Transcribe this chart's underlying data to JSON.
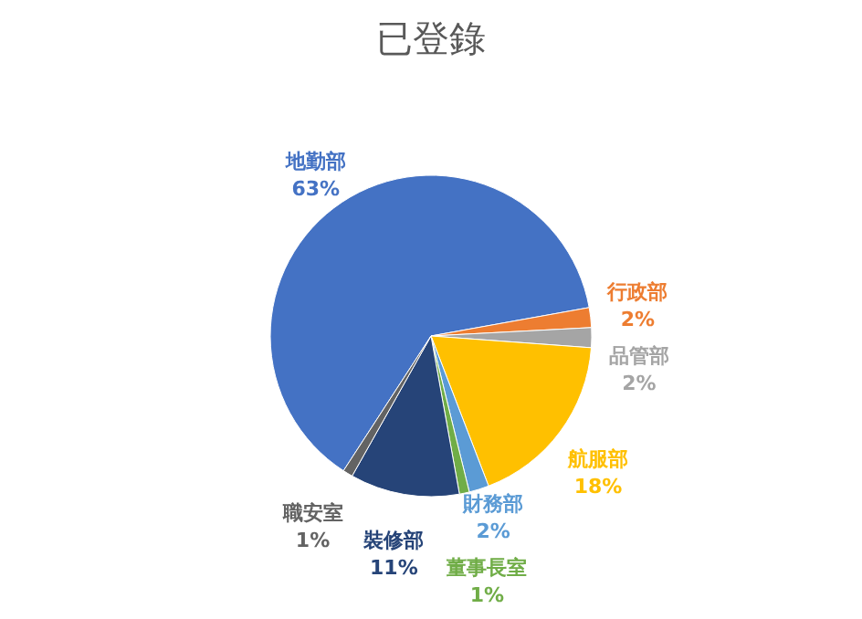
{
  "chart_data": {
    "type": "pie",
    "title": "已登錄",
    "categories": [
      "地勤部",
      "行政部",
      "品管部",
      "航服部",
      "財務部",
      "董事長室",
      "裝修部",
      "職安室"
    ],
    "values": [
      63,
      2,
      2,
      18,
      2,
      1,
      11,
      1
    ],
    "colors": [
      "#4472c4",
      "#ed7d31",
      "#a5a5a5",
      "#ffc000",
      "#5b9bd5",
      "#70ad47",
      "#264478",
      "#636363"
    ],
    "value_labels": [
      "63%",
      "2%",
      "2%",
      "18%",
      "2%",
      "1%",
      "11%",
      "1%"
    ],
    "legend": false
  }
}
